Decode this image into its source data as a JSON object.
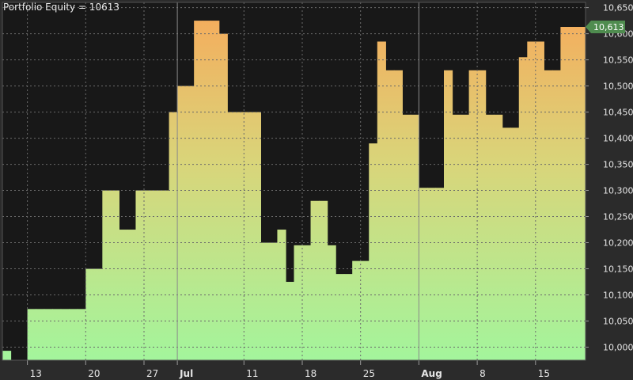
{
  "chart_data": {
    "type": "area",
    "title": "Portfolio Equity = 10613",
    "series": [
      {
        "name": "Portfolio Equity",
        "values": [
          9993,
          9973,
          9973,
          10073,
          10073,
          10073,
          10073,
          10073,
          10073,
          10073,
          10150,
          10150,
          10300,
          10300,
          10225,
          10225,
          10300,
          10300,
          10300,
          10300,
          10450,
          10500,
          10500,
          10625,
          10625,
          10625,
          10600,
          10450,
          10450,
          10450,
          10450,
          10200,
          10200,
          10225,
          10125,
          10195,
          10195,
          10280,
          10280,
          10195,
          10140,
          10140,
          10165,
          10165,
          10390,
          10585,
          10530,
          10530,
          10445,
          10445,
          10305,
          10305,
          10305,
          10530,
          10445,
          10445,
          10530,
          10530,
          10445,
          10445,
          10420,
          10420,
          10555,
          10585,
          10585,
          10530,
          10530,
          10613,
          10613,
          10613
        ]
      }
    ],
    "ylim": [
      9975,
      10660
    ],
    "y_ticks": [
      "10,000",
      "10,050",
      "10,100",
      "10,150",
      "10,200",
      "10,250",
      "10,300",
      "10,350",
      "10,400",
      "10,450",
      "10,500",
      "10,550",
      "10,600",
      "10,650"
    ],
    "x_ticks": [
      {
        "label": "13",
        "index": 3,
        "month_start": false
      },
      {
        "label": "20",
        "index": 10,
        "month_start": false
      },
      {
        "label": "27",
        "index": 17,
        "month_start": false
      },
      {
        "label": "Jul",
        "index": 21,
        "month_start": true
      },
      {
        "label": "11",
        "index": 29,
        "month_start": false
      },
      {
        "label": "18",
        "index": 36,
        "month_start": false
      },
      {
        "label": "25",
        "index": 43,
        "month_start": false
      },
      {
        "label": "Aug",
        "index": 50,
        "month_start": true
      },
      {
        "label": "8",
        "index": 57,
        "month_start": false
      },
      {
        "label": "15",
        "index": 64,
        "month_start": false
      }
    ],
    "last_value_label": "10,613",
    "grid": true,
    "colors": {
      "background": "#2b2b2b",
      "plot_background": "#181818",
      "fill_bottom": "#a3f59c",
      "fill_top": "#f7a95a",
      "badge": "#4f8c4f",
      "grid": "#6a6a6a",
      "text": "#e6e6e6"
    }
  }
}
